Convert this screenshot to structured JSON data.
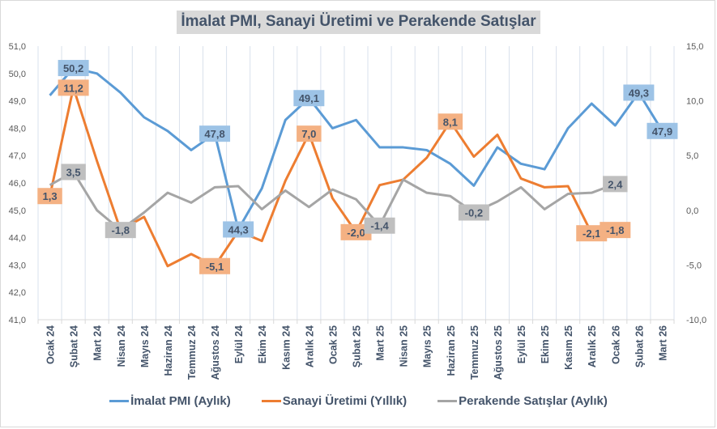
{
  "chart_data": {
    "type": "line",
    "title": "İmalat PMI,  Sanayi Üretimi ve Perakende Satışlar",
    "categories": [
      "Ocak 24",
      "Şubat 24",
      "Mart 24",
      "Nisan 24",
      "Mayıs 24",
      "Haziran 24",
      "Temmuz 24",
      "Ağustos 24",
      "Eylül 24",
      "Ekim 24",
      "Kasım 24",
      "Aralık 24",
      "Ocak 25",
      "Şubat 25",
      "Mart 25",
      "Nisan 25",
      "Mayıs 25",
      "Haziran 25",
      "Temmuz 25",
      "Ağustos 25",
      "Eylül 25",
      "Ekim 25",
      "Kasım 25",
      "Aralık 25",
      "Ocak 26",
      "Şubat 26",
      "Mart 26"
    ],
    "left_axis": {
      "ylim": [
        41,
        51
      ],
      "ticks": [
        "51,0",
        "50,0",
        "49,0",
        "48,0",
        "47,0",
        "46,0",
        "45,0",
        "44,0",
        "43,0",
        "42,0",
        "41,0"
      ],
      "tick_values": [
        51,
        50,
        49,
        48,
        47,
        46,
        45,
        44,
        43,
        42,
        41
      ]
    },
    "right_axis": {
      "ylim": [
        -10,
        15
      ],
      "ticks": [
        "15,0",
        "10,0",
        "5,0",
        "0,0",
        "-5,0",
        "-10,0"
      ],
      "tick_values": [
        15,
        10,
        5,
        0,
        -5,
        -10
      ]
    },
    "grid": "vertical",
    "legend_position": "bottom",
    "series": [
      {
        "name": "İmalat PMI (Aylık)",
        "axis": "left",
        "color": "#5b9bd5",
        "label_bg": "#9dc3e6",
        "values": [
          49.2,
          50.2,
          50.0,
          49.3,
          48.4,
          47.9,
          47.2,
          47.8,
          44.3,
          45.8,
          48.3,
          49.1,
          48.0,
          48.3,
          47.3,
          47.3,
          47.2,
          46.7,
          45.9,
          47.3,
          46.7,
          46.5,
          48.0,
          48.9,
          48.1,
          49.3,
          47.9
        ],
        "labels": [
          {
            "index": 1,
            "text": "50,2"
          },
          {
            "index": 7,
            "text": "47,8"
          },
          {
            "index": 8,
            "text": "44,3"
          },
          {
            "index": 11,
            "text": "49,1"
          },
          {
            "index": 25,
            "text": "49,3"
          },
          {
            "index": 26,
            "text": "47,9"
          }
        ]
      },
      {
        "name": "Sanayi Üretimi (Yıllık)",
        "axis": "right",
        "color": "#ed7d31",
        "label_bg": "#f4b183",
        "values": [
          1.3,
          11.2,
          4.5,
          -1.8,
          -0.6,
          -5.1,
          -4.0,
          -5.1,
          -1.9,
          -2.8,
          2.7,
          7.0,
          1.1,
          -2.0,
          2.3,
          2.8,
          4.8,
          8.1,
          4.9,
          6.9,
          2.9,
          2.1,
          2.2,
          -2.1,
          -1.8,
          null,
          null
        ],
        "labels": [
          {
            "index": 0,
            "text": "1,3"
          },
          {
            "index": 1,
            "text": "11,2"
          },
          {
            "index": 7,
            "text": "-5,1"
          },
          {
            "index": 11,
            "text": "7,0"
          },
          {
            "index": 13,
            "text": "-2,0"
          },
          {
            "index": 17,
            "text": "8,1"
          },
          {
            "index": 23,
            "text": "-2,1"
          },
          {
            "index": 24,
            "text": "-1,8"
          }
        ]
      },
      {
        "name": "Perakende Satışlar (Aylık)",
        "axis": "right",
        "color": "#a5a5a5",
        "label_bg": "#bfbfbf",
        "values": [
          2.3,
          3.5,
          0.0,
          -1.8,
          -0.2,
          1.6,
          0.7,
          2.1,
          2.2,
          0.1,
          1.8,
          0.3,
          1.9,
          1.0,
          -1.4,
          2.8,
          1.6,
          1.3,
          -0.2,
          0.8,
          2.1,
          0.1,
          1.5,
          1.6,
          2.4,
          null,
          null
        ],
        "labels": [
          {
            "index": 1,
            "text": "3,5"
          },
          {
            "index": 3,
            "text": "-1,8"
          },
          {
            "index": 14,
            "text": "-1,4"
          },
          {
            "index": 18,
            "text": "-0,2"
          },
          {
            "index": 24,
            "text": "2,4"
          }
        ]
      }
    ]
  }
}
